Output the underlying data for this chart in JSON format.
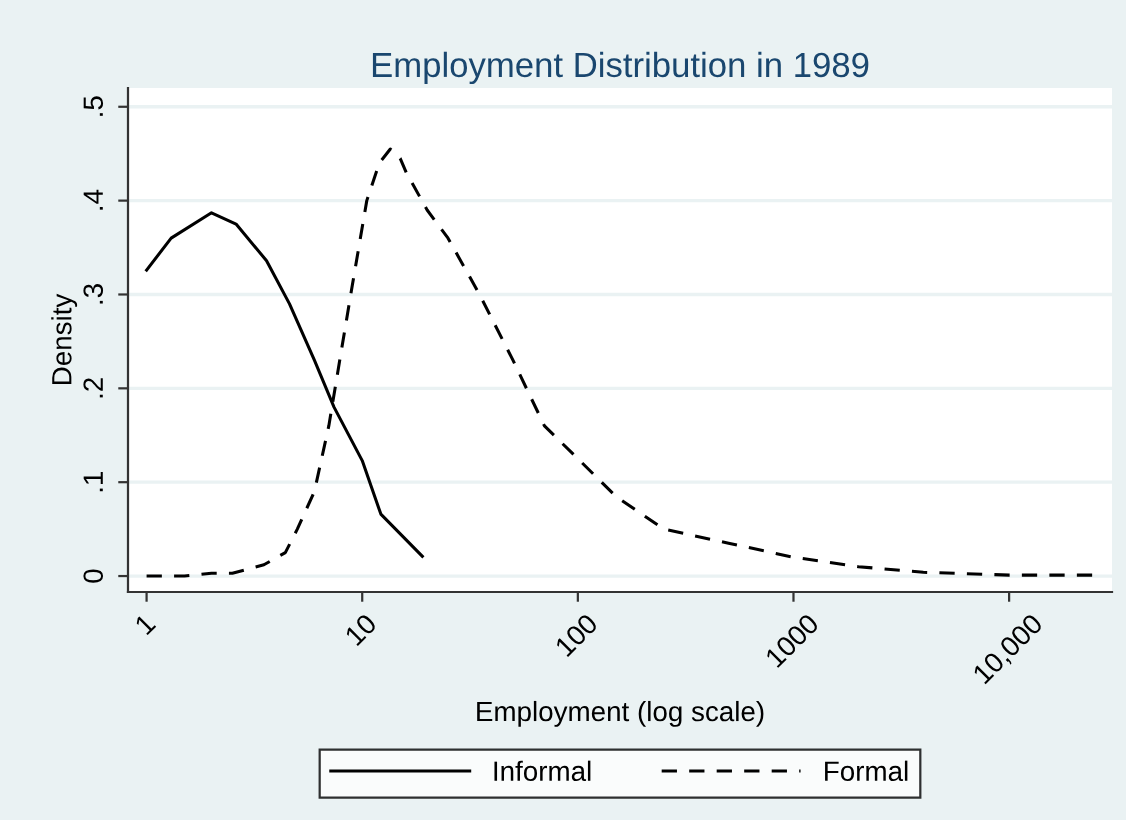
{
  "chart_data": {
    "type": "line",
    "title": "Employment Distribution in 1989",
    "xlabel": "Employment (log scale)",
    "ylabel": "Density",
    "log": "x",
    "xlim": [
      0.82,
      30000
    ],
    "ylim": [
      -0.017,
      0.52
    ],
    "xticks": [
      1,
      10,
      100,
      1000,
      {
        "value": 10000,
        "label": "10,000"
      }
    ],
    "yticks": [
      0,
      {
        "value": 0.1,
        "label": ".1"
      },
      {
        "value": 0.2,
        "label": ".2"
      },
      {
        "value": 0.3,
        "label": ".3"
      },
      {
        "value": 0.4,
        "label": ".4"
      },
      {
        "value": 0.5,
        "label": ".5"
      }
    ],
    "grid": "y",
    "legend": "bottom",
    "series": [
      {
        "name": "Informal",
        "color": "#000000",
        "line_style": "solid",
        "x": [
          1,
          1.3,
          2,
          2.6,
          3.6,
          4.6,
          6,
          7.4,
          10,
          12.2,
          19
        ],
        "values": [
          0.326,
          0.36,
          0.387,
          0.375,
          0.336,
          0.29,
          0.23,
          0.18,
          0.123,
          0.066,
          0.021
        ]
      },
      {
        "name": "Formal",
        "color": "#000000",
        "line_style": "dashed",
        "x": [
          1,
          1.5,
          2,
          2.5,
          3.5,
          4.4,
          5,
          6,
          7,
          8,
          9,
          10.5,
          12,
          13.5,
          15,
          16,
          20,
          25,
          35,
          50,
          70,
          100,
          150,
          250,
          500,
          1000,
          2000,
          4000,
          10000,
          25000
        ],
        "values": [
          0,
          0,
          0.003,
          0.003,
          0.012,
          0.025,
          0.05,
          0.09,
          0.16,
          0.24,
          0.31,
          0.4,
          0.44,
          0.455,
          0.445,
          0.43,
          0.39,
          0.36,
          0.3,
          0.23,
          0.16,
          0.125,
          0.085,
          0.05,
          0.035,
          0.02,
          0.01,
          0.004,
          0.001,
          0.001
        ]
      }
    ]
  }
}
